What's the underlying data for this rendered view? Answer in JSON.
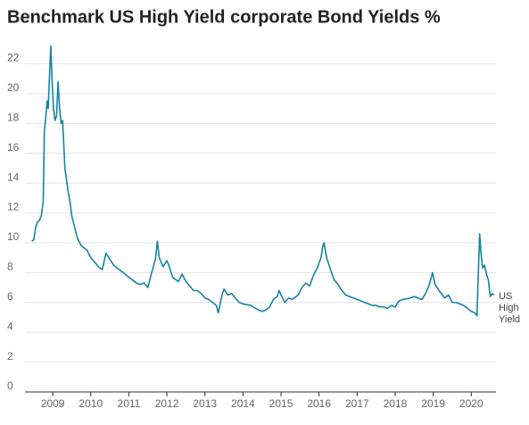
{
  "chart_data": {
    "type": "line",
    "title": "Benchmark US High Yield corporate Bond Yields %",
    "xlim": [
      2008.27,
      2020.65
    ],
    "xticks": [
      2009,
      2010,
      2011,
      2012,
      2013,
      2014,
      2015,
      2016,
      2017,
      2018,
      2019,
      2020
    ],
    "ylim": [
      0,
      24
    ],
    "yticks": [
      0,
      2,
      4,
      6,
      8,
      10,
      12,
      14,
      16,
      18,
      20,
      22
    ],
    "grid": true,
    "x": [
      2008.45,
      2008.5,
      2008.55,
      2008.6,
      2008.65,
      2008.7,
      2008.75,
      2008.78,
      2008.82,
      2008.85,
      2008.88,
      2008.92,
      2008.95,
      2008.98,
      2009.02,
      2009.06,
      2009.1,
      2009.14,
      2009.18,
      2009.22,
      2009.26,
      2009.32,
      2009.4,
      2009.45,
      2009.5,
      2009.55,
      2009.65,
      2009.75,
      2009.9,
      2010.0,
      2010.1,
      2010.2,
      2010.3,
      2010.4,
      2010.5,
      2010.6,
      2010.75,
      2010.9,
      2011.0,
      2011.1,
      2011.2,
      2011.3,
      2011.4,
      2011.5,
      2011.6,
      2011.7,
      2011.75,
      2011.8,
      2011.9,
      2012.0,
      2012.05,
      2012.15,
      2012.3,
      2012.4,
      2012.5,
      2012.6,
      2012.7,
      2012.8,
      2012.9,
      2013.0,
      2013.1,
      2013.2,
      2013.3,
      2013.35,
      2013.45,
      2013.5,
      2013.6,
      2013.7,
      2013.8,
      2013.9,
      2014.0,
      2014.2,
      2014.4,
      2014.5,
      2014.6,
      2014.7,
      2014.8,
      2014.9,
      2014.95,
      2015.0,
      2015.1,
      2015.2,
      2015.3,
      2015.45,
      2015.55,
      2015.65,
      2015.75,
      2015.85,
      2015.95,
      2016.05,
      2016.1,
      2016.13,
      2016.2,
      2016.3,
      2016.4,
      2016.5,
      2016.6,
      2016.7,
      2016.8,
      2016.9,
      2017.0,
      2017.2,
      2017.3,
      2017.4,
      2017.5,
      2017.6,
      2017.7,
      2017.8,
      2017.9,
      2018.0,
      2018.1,
      2018.2,
      2018.4,
      2018.5,
      2018.6,
      2018.7,
      2018.8,
      2018.9,
      2018.98,
      2019.05,
      2019.15,
      2019.3,
      2019.4,
      2019.5,
      2019.6,
      2019.7,
      2019.8,
      2019.9,
      2020.0,
      2020.1,
      2020.15,
      2020.18,
      2020.22,
      2020.26,
      2020.3,
      2020.35,
      2020.4,
      2020.45,
      2020.48,
      2020.5,
      2020.55,
      2020.6
    ],
    "series": [
      {
        "name": "US High Yield",
        "color": "#1583a4",
        "values": [
          10.1,
          10.2,
          11.0,
          11.4,
          11.5,
          11.8,
          12.8,
          17.5,
          18.5,
          19.5,
          19.0,
          21.5,
          23.2,
          21.0,
          19.0,
          18.2,
          18.5,
          20.8,
          19.0,
          18.0,
          18.2,
          15.0,
          13.5,
          12.8,
          11.8,
          11.3,
          10.3,
          9.8,
          9.5,
          9.0,
          8.7,
          8.4,
          8.2,
          9.3,
          8.9,
          8.5,
          8.2,
          7.9,
          7.7,
          7.5,
          7.3,
          7.2,
          7.3,
          7.0,
          8.0,
          8.9,
          10.1,
          9.0,
          8.4,
          8.8,
          8.5,
          7.7,
          7.4,
          7.9,
          7.4,
          7.1,
          6.8,
          6.8,
          6.6,
          6.3,
          6.2,
          6.0,
          5.8,
          5.3,
          6.5,
          6.9,
          6.5,
          6.6,
          6.3,
          6.0,
          5.9,
          5.8,
          5.5,
          5.4,
          5.5,
          5.7,
          6.2,
          6.4,
          6.8,
          6.5,
          6.0,
          6.3,
          6.2,
          6.5,
          7.0,
          7.3,
          7.1,
          7.8,
          8.3,
          9.0,
          9.8,
          10.0,
          9.0,
          8.2,
          7.5,
          7.2,
          6.8,
          6.5,
          6.4,
          6.3,
          6.2,
          6.0,
          5.9,
          5.8,
          5.8,
          5.7,
          5.7,
          5.6,
          5.8,
          5.7,
          6.1,
          6.2,
          6.3,
          6.4,
          6.3,
          6.2,
          6.6,
          7.2,
          8.0,
          7.2,
          6.8,
          6.3,
          6.5,
          6.0,
          6.0,
          5.9,
          5.8,
          5.6,
          5.4,
          5.3,
          5.1,
          7.5,
          10.6,
          9.2,
          8.3,
          8.5,
          7.9,
          7.5,
          6.8,
          6.4,
          6.6,
          6.5
        ]
      }
    ]
  }
}
